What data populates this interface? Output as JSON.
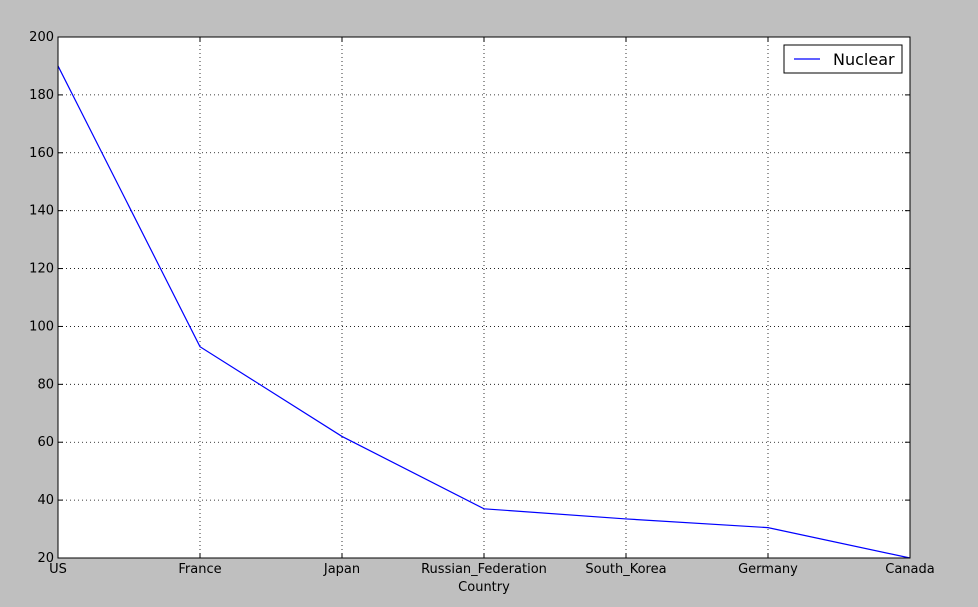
{
  "chart_data": {
    "type": "line",
    "categories": [
      "US",
      "France",
      "Japan",
      "Russian_Federation",
      "South_Korea",
      "Germany",
      "Canada"
    ],
    "series": [
      {
        "name": "Nuclear",
        "color": "#0000ff",
        "values": [
          190,
          93,
          62,
          37,
          33.5,
          30.5,
          20
        ]
      }
    ],
    "xlabel": "Country",
    "ylabel": "",
    "ylim": [
      20,
      200
    ],
    "yticks": [
      20,
      40,
      60,
      80,
      100,
      120,
      140,
      160,
      180,
      200
    ],
    "grid": true,
    "legend_position": "top-right"
  }
}
